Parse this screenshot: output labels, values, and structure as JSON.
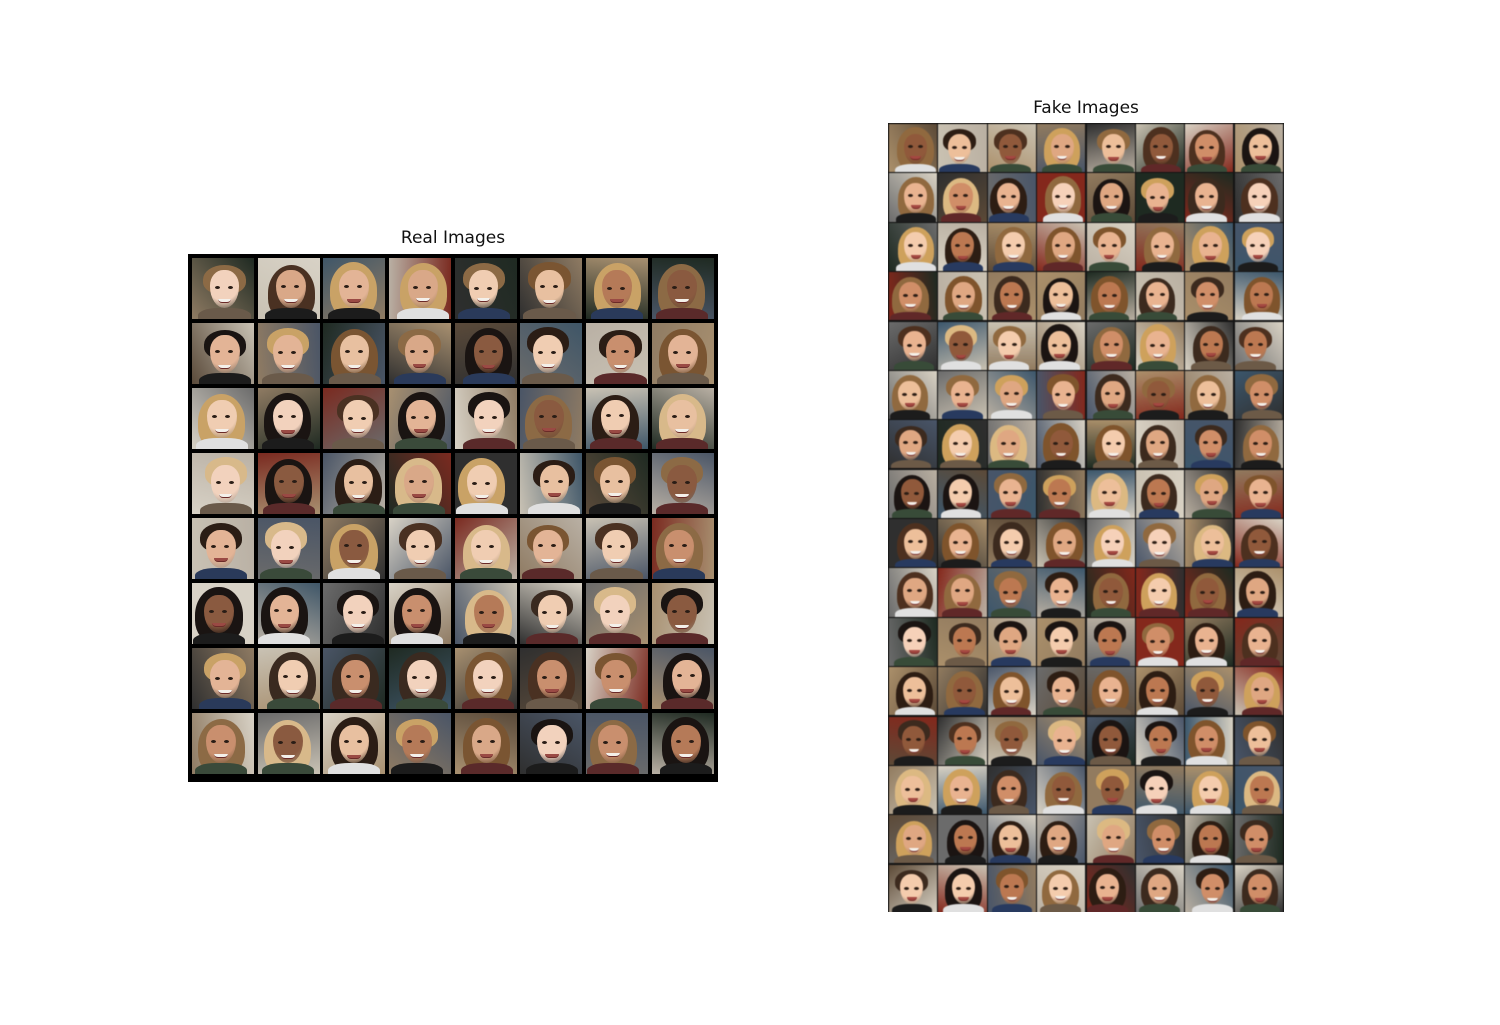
{
  "figure": {
    "panels": [
      {
        "id": "real",
        "title": "Real Images",
        "rows": 8,
        "cols": 8
      },
      {
        "id": "fake",
        "title": "Fake Images",
        "rows": 16,
        "cols": 8
      }
    ],
    "palette": {
      "skin": [
        "#e8c0a0",
        "#d9a888",
        "#c98f6e",
        "#f0cdb2",
        "#b57a58",
        "#8a5a40",
        "#e3b496",
        "#f2d2bd"
      ],
      "hair": [
        "#2b1d15",
        "#4a3122",
        "#7a5532",
        "#c9a266",
        "#1a1412",
        "#8c6a45",
        "#d8b98a",
        "#3a2a20"
      ],
      "background": [
        "#6b6b6b",
        "#2f2f2f",
        "#c9c2b4",
        "#8f7b63",
        "#3f5668",
        "#b9b0a4",
        "#5a4a3a",
        "#1f2a22",
        "#a89070",
        "#d8d2c6",
        "#4a5566",
        "#7a2a20"
      ],
      "clothing": [
        "#1c1c1c",
        "#5a2a2a",
        "#2a3a5a",
        "#e0e0e0",
        "#6a5a4a",
        "#3a4a3a"
      ]
    }
  }
}
